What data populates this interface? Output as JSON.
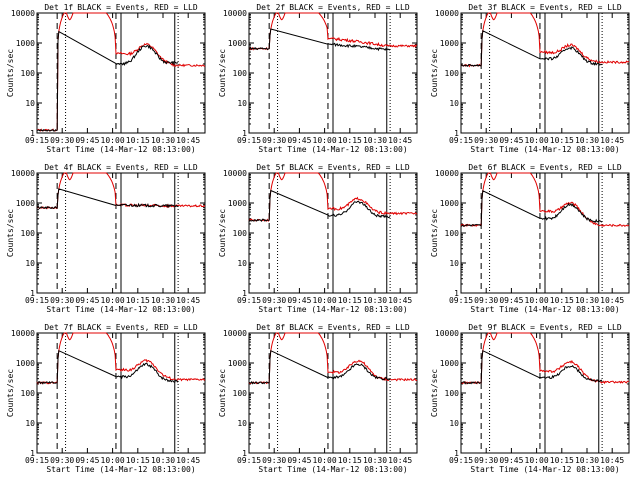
{
  "chart_data": {
    "type": "line",
    "start_time_label": "Start Time (14-Mar-12 08:13:00)",
    "ylabel": "Counts/sec",
    "ylim": [
      1,
      10000
    ],
    "yscale": "log",
    "y_tick_labels": [
      "1",
      "10",
      "100",
      "1000",
      "10000"
    ],
    "x_tick_labels": [
      "09:15",
      "09:30",
      "09:45",
      "10:00",
      "10:15",
      "10:30",
      "10:45"
    ],
    "x_tick_minutes": [
      0,
      15,
      30,
      45,
      60,
      75,
      90
    ],
    "xlim_minutes": [
      0,
      100
    ],
    "legend_text": "BLACK = Events, RED = LLD",
    "colors": {
      "events": "#000000",
      "lld": "#e00000"
    },
    "vertical_markers_minutes": {
      "dashed": [
        12,
        47
      ],
      "dotted": [
        17,
        84
      ],
      "solid": [
        50,
        82
      ]
    },
    "panels": [
      {
        "det_label": "Det 1f",
        "pre": 1.25,
        "mid_black": 200,
        "mid_red": 450,
        "post_black": 220,
        "post_red": 180,
        "peak_red": 900,
        "peak_black": 800
      },
      {
        "det_label": "Det 2f",
        "pre": 650,
        "mid_black": 900,
        "mid_red": 1400,
        "post_black": 600,
        "post_red": 800,
        "peak_red": 0,
        "peak_black": 0
      },
      {
        "det_label": "Det 3f",
        "pre": 180,
        "mid_black": 300,
        "mid_red": 500,
        "post_black": 200,
        "post_red": 230,
        "peak_red": 850,
        "peak_black": 700
      },
      {
        "det_label": "Det 4f",
        "pre": 700,
        "mid_black": 850,
        "mid_red": 850,
        "post_black": 800,
        "post_red": 800,
        "peak_red": 0,
        "peak_black": 0
      },
      {
        "det_label": "Det 5f",
        "pre": 270,
        "mid_black": 380,
        "mid_red": 650,
        "post_black": 350,
        "post_red": 450,
        "peak_red": 1400,
        "peak_black": 1100
      },
      {
        "det_label": "Det 6f",
        "pre": 180,
        "mid_black": 300,
        "mid_red": 550,
        "post_black": 250,
        "post_red": 180,
        "peak_red": 1000,
        "peak_black": 900
      },
      {
        "det_label": "Det 7f",
        "pre": 220,
        "mid_black": 350,
        "mid_red": 600,
        "post_black": 250,
        "post_red": 280,
        "peak_red": 1200,
        "peak_black": 900
      },
      {
        "det_label": "Det 8f",
        "pre": 220,
        "mid_black": 330,
        "mid_red": 500,
        "post_black": 300,
        "post_red": 280,
        "peak_red": 1200,
        "peak_black": 900
      },
      {
        "det_label": "Det 9f",
        "pre": 220,
        "mid_black": 330,
        "mid_red": 550,
        "post_black": 250,
        "post_red": 230,
        "peak_red": 1100,
        "peak_black": 800
      }
    ]
  }
}
